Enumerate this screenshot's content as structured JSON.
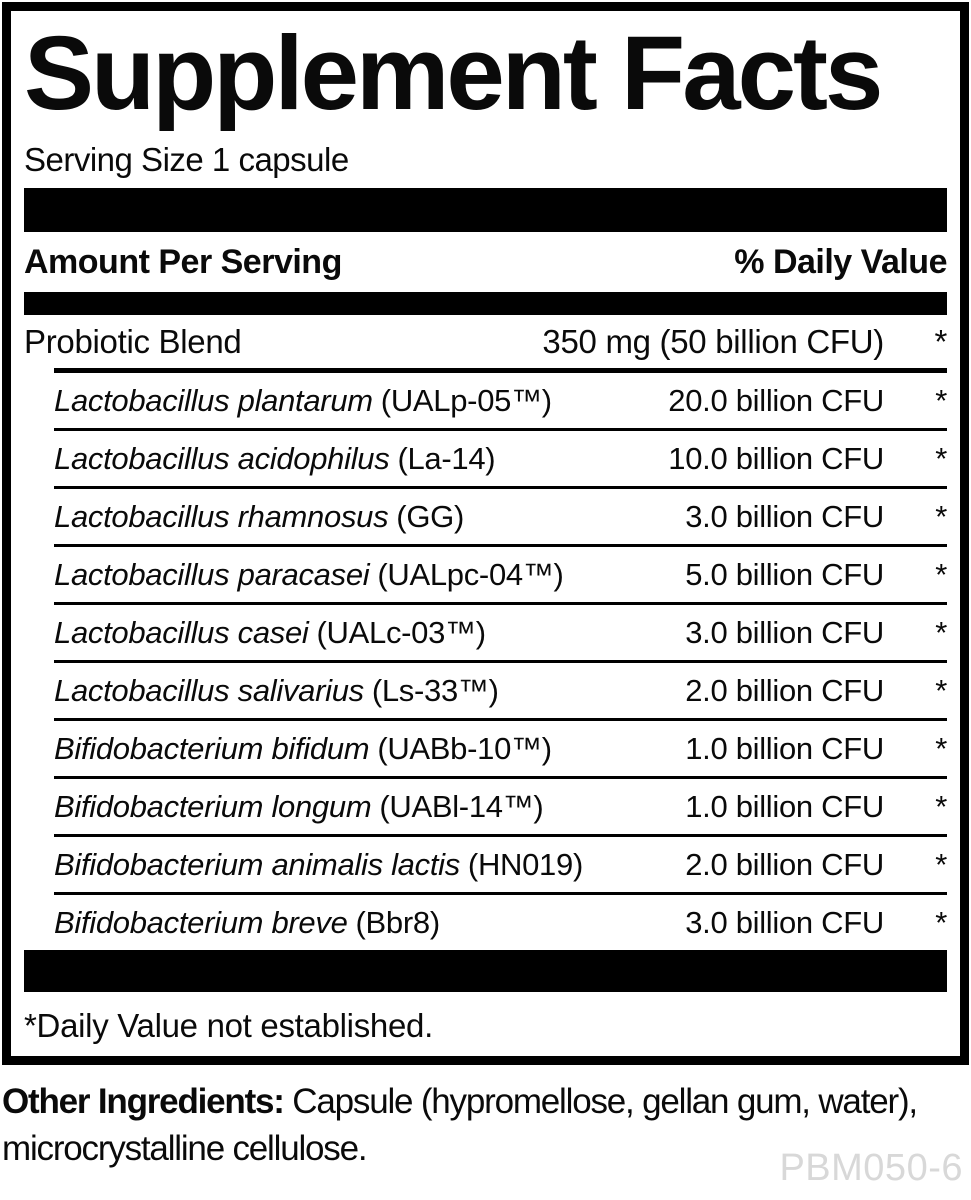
{
  "title": "Supplement Facts",
  "serving_size": "Serving Size 1 capsule",
  "header": {
    "amount_label": "Amount Per Serving",
    "dv_label": "% Daily Value"
  },
  "blend": {
    "name": "Probiotic Blend",
    "amount": "350 mg (50 billion CFU)",
    "dv": "*"
  },
  "strains": [
    {
      "species": "Lactobacillus plantarum",
      "code": "(UALp-05™)",
      "amount": "20.0 billion CFU",
      "dv": "*"
    },
    {
      "species": "Lactobacillus acidophilus",
      "code": "(La-14)",
      "amount": "10.0 billion CFU",
      "dv": "*"
    },
    {
      "species": "Lactobacillus rhamnosus",
      "code": "(GG)",
      "amount": "3.0 billion CFU",
      "dv": "*"
    },
    {
      "species": "Lactobacillus paracasei",
      "code": "(UALpc-04™)",
      "amount": "5.0 billion CFU",
      "dv": "*"
    },
    {
      "species": "Lactobacillus casei",
      "code": "(UALc-03™)",
      "amount": "3.0 billion CFU",
      "dv": "*"
    },
    {
      "species": "Lactobacillus salivarius",
      "code": "(Ls-33™)",
      "amount": "2.0 billion CFU",
      "dv": "*"
    },
    {
      "species": "Bifidobacterium bifidum",
      "code": "(UABb-10™)",
      "amount": "1.0 billion CFU",
      "dv": "*"
    },
    {
      "species": "Bifidobacterium longum",
      "code": "(UABl-14™)",
      "amount": "1.0 billion CFU",
      "dv": "*"
    },
    {
      "species": "Bifidobacterium animalis lactis",
      "code": "(HN019)",
      "amount": "2.0 billion CFU",
      "dv": "*"
    },
    {
      "species": "Bifidobacterium breve",
      "code": "(Bbr8)",
      "amount": "3.0 billion CFU",
      "dv": "*"
    }
  ],
  "footnote": "*Daily Value not established.",
  "other_ingredients": {
    "label": "Other Ingredients:",
    "text": " Capsule (hypromellose, gellan gum, water), microcrystalline cellulose."
  },
  "product_code": "PBM050-6",
  "colors": {
    "ink": "#0a0a0a",
    "product_code": "#d8d8d8"
  }
}
